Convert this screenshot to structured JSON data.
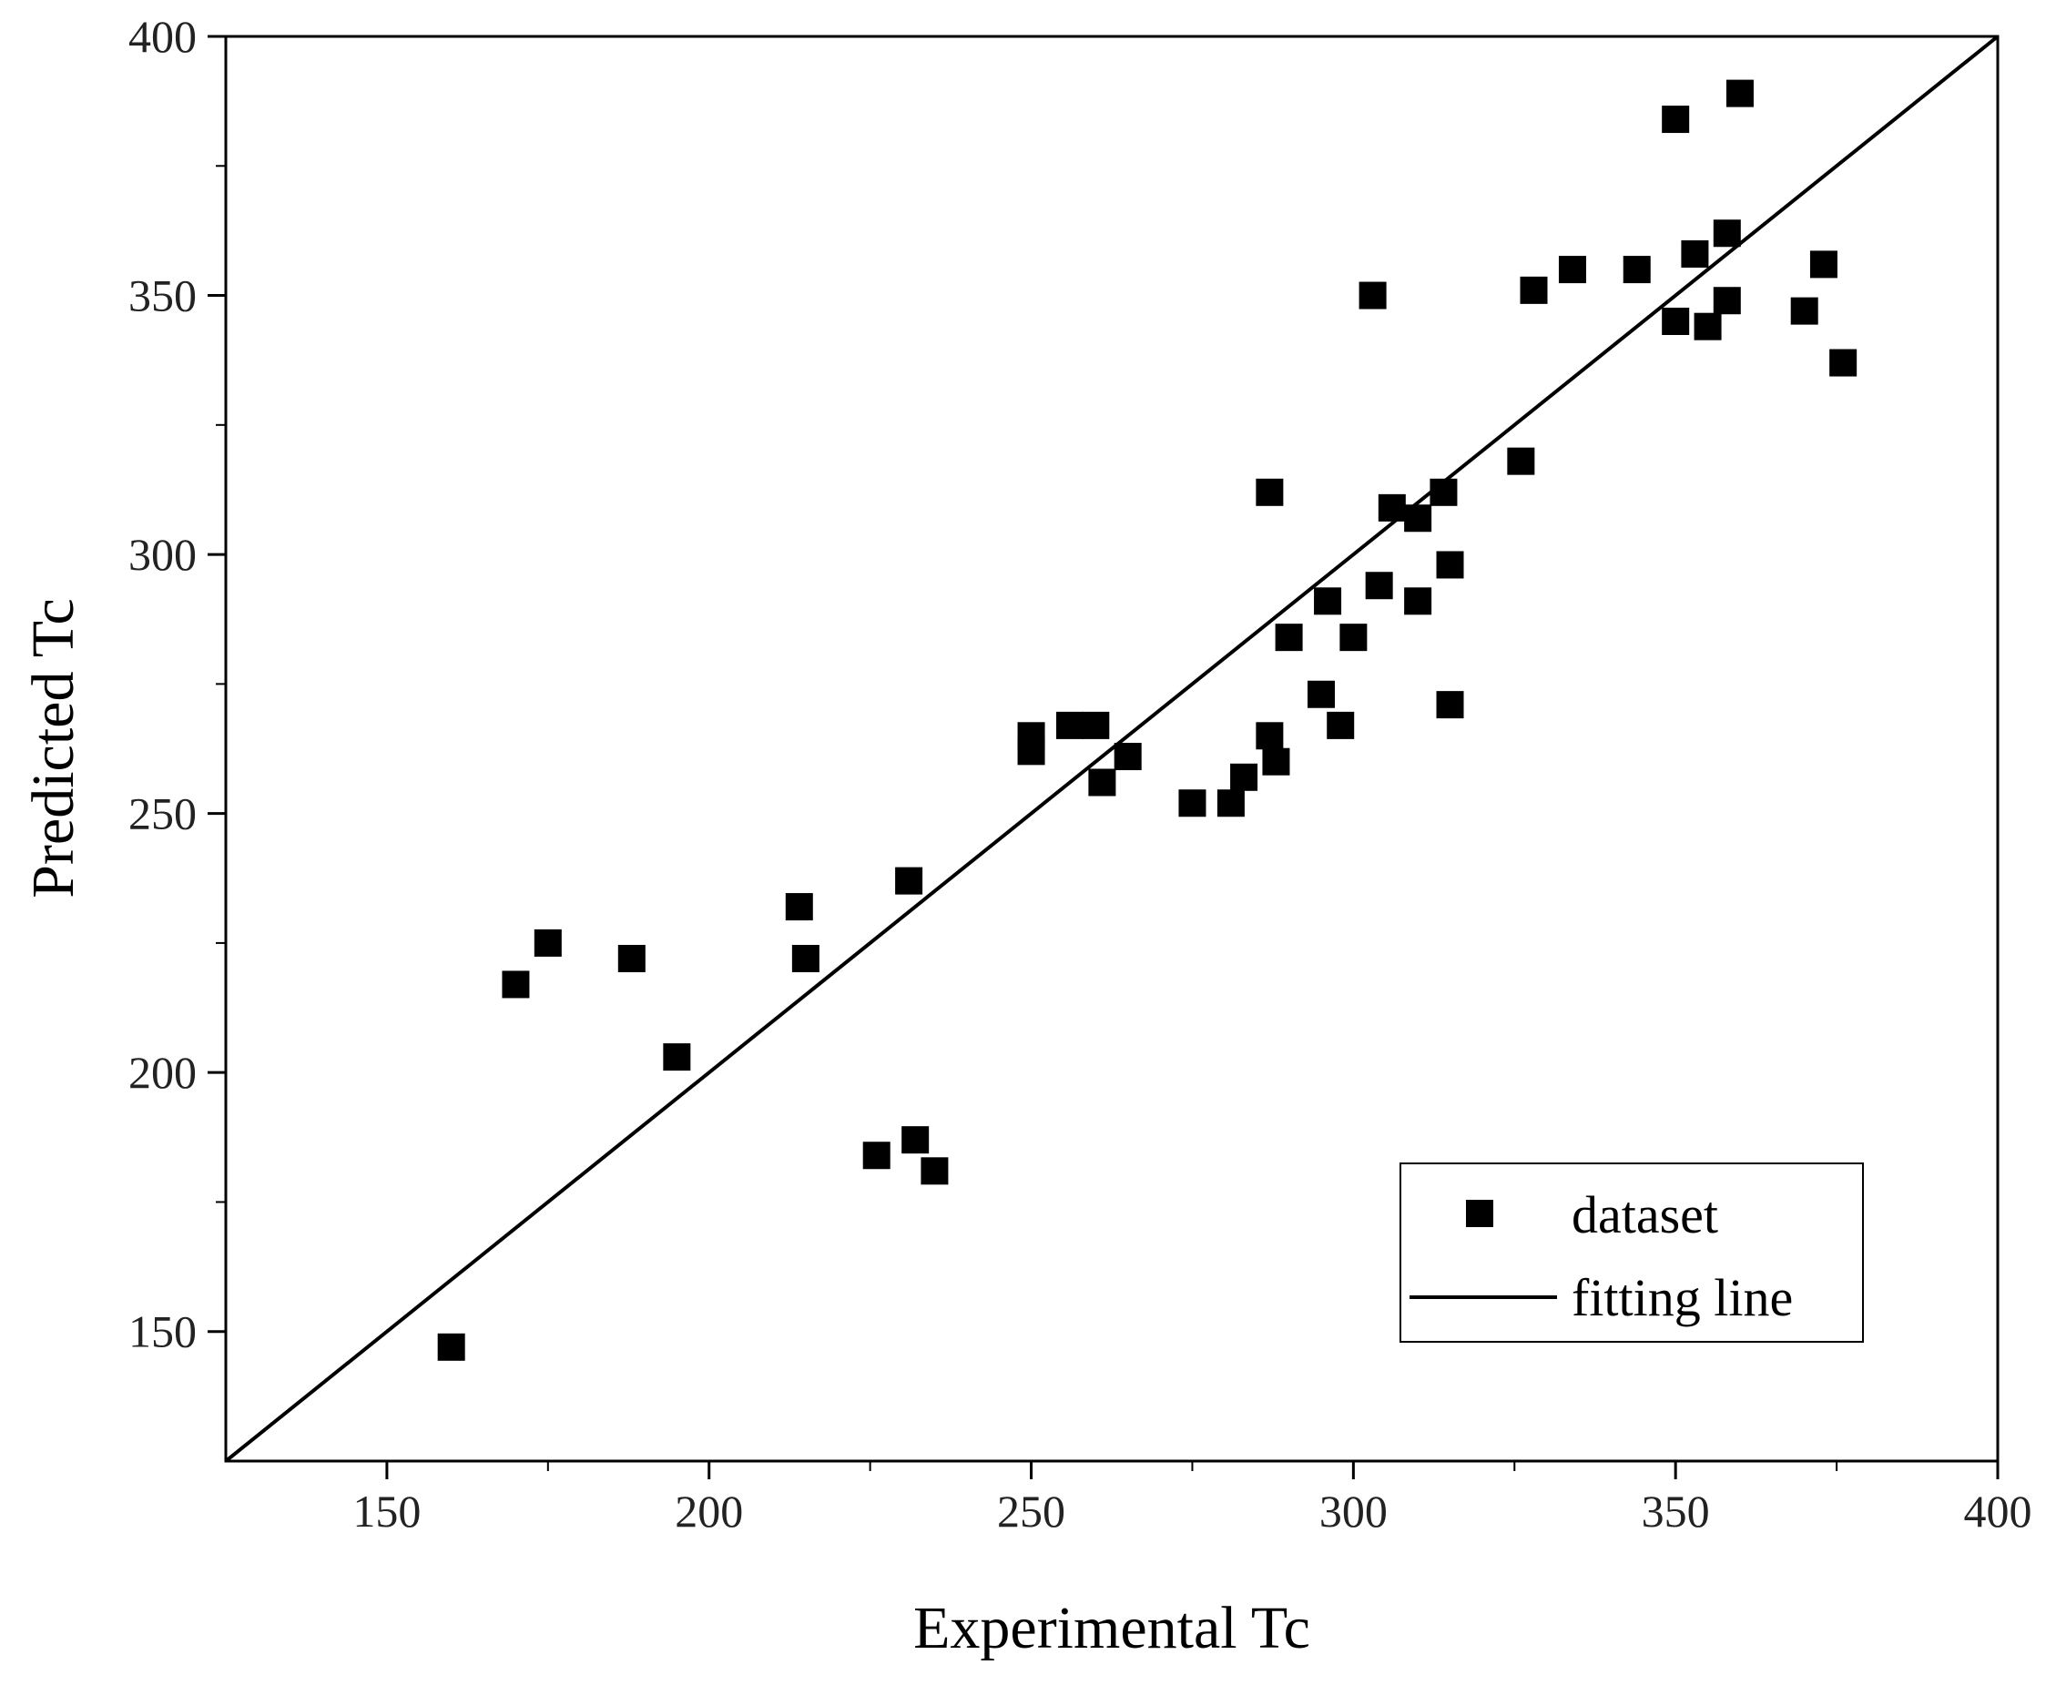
{
  "chart_data": {
    "type": "scatter",
    "xlabel": "Experimental Tc",
    "ylabel": "Predicted Tc",
    "xlim": [
      125,
      400
    ],
    "ylim": [
      125,
      400
    ],
    "xticks": [
      150,
      200,
      250,
      300,
      350,
      400
    ],
    "yticks": [
      150,
      200,
      250,
      300,
      350,
      400
    ],
    "x_tick_labels": [
      "150",
      "200",
      "250",
      "300",
      "350",
      "400"
    ],
    "y_tick_labels": [
      "150",
      "200",
      "250",
      "300",
      "350",
      "400"
    ],
    "legend": {
      "position": "bottom-right",
      "entries": [
        {
          "label": "dataset",
          "marker": "square"
        },
        {
          "label": "fitting line",
          "marker": "line"
        }
      ]
    },
    "colors": {
      "marker": "#000000",
      "line": "#000000",
      "frame": "#000000"
    },
    "series": [
      {
        "name": "dataset",
        "kind": "scatter",
        "points": [
          [
            160,
            147
          ],
          [
            170,
            217
          ],
          [
            175,
            225
          ],
          [
            188,
            222
          ],
          [
            195,
            203
          ],
          [
            214,
            232
          ],
          [
            215,
            222
          ],
          [
            226,
            184
          ],
          [
            231,
            237
          ],
          [
            232,
            187
          ],
          [
            235,
            181
          ],
          [
            250,
            265
          ],
          [
            250,
            262
          ],
          [
            256,
            267
          ],
          [
            260,
            267
          ],
          [
            261,
            256
          ],
          [
            265,
            261
          ],
          [
            275,
            252
          ],
          [
            281,
            252
          ],
          [
            283,
            257
          ],
          [
            287,
            265
          ],
          [
            287,
            312
          ],
          [
            288,
            260
          ],
          [
            290,
            284
          ],
          [
            295,
            273
          ],
          [
            296,
            291
          ],
          [
            298,
            267
          ],
          [
            300,
            284
          ],
          [
            303,
            350
          ],
          [
            304,
            294
          ],
          [
            306,
            309
          ],
          [
            310,
            291
          ],
          [
            310,
            307
          ],
          [
            314,
            312
          ],
          [
            315,
            298
          ],
          [
            315,
            271
          ],
          [
            326,
            318
          ],
          [
            328,
            351
          ],
          [
            334,
            355
          ],
          [
            344,
            355
          ],
          [
            350,
            345
          ],
          [
            350,
            384
          ],
          [
            353,
            358
          ],
          [
            355,
            344
          ],
          [
            358,
            362
          ],
          [
            358,
            349
          ],
          [
            360,
            389
          ],
          [
            370,
            347
          ],
          [
            373,
            356
          ],
          [
            376,
            337
          ]
        ]
      },
      {
        "name": "fitting line",
        "kind": "line",
        "points": [
          [
            125,
            125
          ],
          [
            400,
            400
          ]
        ]
      }
    ]
  }
}
